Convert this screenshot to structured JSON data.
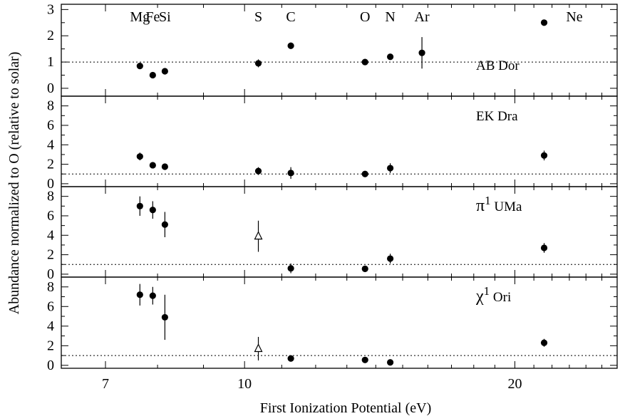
{
  "chart_data": {
    "type": "scatter",
    "xlabel": "First Ionization Potential (eV)",
    "ylabel": "Abundance normalized to O (relative to solar)",
    "x_scale": "log",
    "xlim": [
      6.25,
      26.0
    ],
    "x_ticks": [
      7,
      10,
      20
    ],
    "x_tick_labels": [
      "7",
      "10",
      "20"
    ],
    "element_labels": [
      {
        "text": "Mg",
        "x": 7.646
      },
      {
        "text": "Fe",
        "x": 7.902
      },
      {
        "text": "Si",
        "x": 8.152
      },
      {
        "text": "S",
        "x": 10.36
      },
      {
        "text": "C",
        "x": 11.26
      },
      {
        "text": "O",
        "x": 13.62
      },
      {
        "text": "N",
        "x": 14.53
      },
      {
        "text": "Ar",
        "x": 15.76
      },
      {
        "text": "Ne",
        "x": 23.3
      }
    ],
    "reference_level": 1,
    "panels": [
      {
        "star": "AB Dor",
        "ylim": [
          -0.3,
          3.2
        ],
        "y_ticks": [
          0,
          1,
          2,
          3
        ],
        "y_tick_labels": [
          "0",
          "1",
          "2",
          "3"
        ],
        "points": [
          {
            "element": "Mg",
            "x": 7.646,
            "y": 0.85,
            "err": 0
          },
          {
            "element": "Fe",
            "x": 7.902,
            "y": 0.5,
            "err": 0
          },
          {
            "element": "Si",
            "x": 8.152,
            "y": 0.65,
            "err": 0
          },
          {
            "element": "S",
            "x": 10.36,
            "y": 0.95,
            "err": 0.15
          },
          {
            "element": "C",
            "x": 11.26,
            "y": 1.62,
            "err": 0.12
          },
          {
            "element": "O",
            "x": 13.62,
            "y": 1.0,
            "err": 0
          },
          {
            "element": "N",
            "x": 14.53,
            "y": 1.2,
            "err": 0.1
          },
          {
            "element": "Ar",
            "x": 15.76,
            "y": 1.35,
            "err": 0.6
          },
          {
            "element": "Ne",
            "x": 21.56,
            "y": 2.5,
            "err": 0
          }
        ]
      },
      {
        "star": "EK Dra",
        "ylim": [
          -0.3,
          9.0
        ],
        "y_ticks": [
          0,
          2,
          4,
          6,
          8
        ],
        "y_tick_labels": [
          "0",
          "2",
          "4",
          "6",
          "8"
        ],
        "points": [
          {
            "element": "Mg",
            "x": 7.646,
            "y": 2.8,
            "err": 0.4
          },
          {
            "element": "Fe",
            "x": 7.902,
            "y": 1.9,
            "err": 0.2
          },
          {
            "element": "Si",
            "x": 8.152,
            "y": 1.75,
            "err": 0.25
          },
          {
            "element": "S",
            "x": 10.36,
            "y": 1.3,
            "err": 0.4
          },
          {
            "element": "C",
            "x": 11.26,
            "y": 1.1,
            "err": 0.6
          },
          {
            "element": "O",
            "x": 13.62,
            "y": 1.0,
            "err": 0
          },
          {
            "element": "N",
            "x": 14.53,
            "y": 1.6,
            "err": 0.5
          },
          {
            "element": "Ne",
            "x": 21.56,
            "y": 2.9,
            "err": 0.5
          }
        ]
      },
      {
        "star": "π¹ UMa",
        "star_symbol": "π",
        "star_sup": "1",
        "star_name": "UMa",
        "ylim": [
          -0.3,
          9.0
        ],
        "y_ticks": [
          0,
          2,
          4,
          6,
          8
        ],
        "y_tick_labels": [
          "0",
          "2",
          "4",
          "6",
          "8"
        ],
        "points": [
          {
            "element": "Mg",
            "x": 7.646,
            "y": 7.0,
            "err": 1.0
          },
          {
            "element": "Fe",
            "x": 7.902,
            "y": 6.6,
            "err": 0.9
          },
          {
            "element": "Si",
            "x": 8.152,
            "y": 5.1,
            "err": 1.3
          },
          {
            "element": "S",
            "x": 10.36,
            "y": 3.9,
            "err": 1.6,
            "upper_limit": true
          },
          {
            "element": "C",
            "x": 11.26,
            "y": 0.6,
            "err": 0.5
          },
          {
            "element": "O",
            "x": 13.62,
            "y": 0.55,
            "err": 0
          },
          {
            "element": "N",
            "x": 14.53,
            "y": 1.6,
            "err": 0.5
          },
          {
            "element": "Ne",
            "x": 21.56,
            "y": 2.7,
            "err": 0.5
          }
        ]
      },
      {
        "star": "χ¹ Ori",
        "star_symbol": "χ",
        "star_sup": "1",
        "star_name": "Ori",
        "ylim": [
          -0.3,
          9.0
        ],
        "y_ticks": [
          0,
          2,
          4,
          6,
          8
        ],
        "y_tick_labels": [
          "0",
          "2",
          "4",
          "6",
          "8"
        ],
        "points": [
          {
            "element": "Mg",
            "x": 7.646,
            "y": 7.2,
            "err": 1.1
          },
          {
            "element": "Fe",
            "x": 7.902,
            "y": 7.1,
            "err": 0.9
          },
          {
            "element": "Si",
            "x": 8.152,
            "y": 4.9,
            "err": 2.3
          },
          {
            "element": "S",
            "x": 10.36,
            "y": 1.7,
            "err": 1.2,
            "upper_limit": true
          },
          {
            "element": "C",
            "x": 11.26,
            "y": 0.7,
            "err": 0.3
          },
          {
            "element": "O",
            "x": 13.62,
            "y": 0.55,
            "err": 0
          },
          {
            "element": "N",
            "x": 14.53,
            "y": 0.3,
            "err": 0.3
          },
          {
            "element": "Ne",
            "x": 21.56,
            "y": 2.3,
            "err": 0.4
          }
        ]
      }
    ]
  }
}
